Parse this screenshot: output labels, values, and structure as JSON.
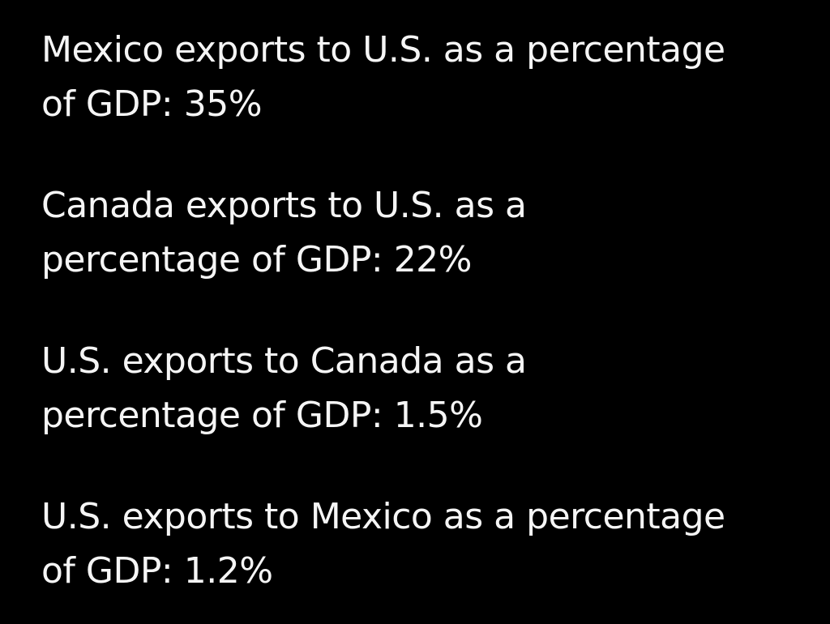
{
  "post": {
    "paragraphs": [
      "Mexico exports to U.S. as a percentage\nof GDP: 35%",
      "Canada exports to U.S. as a\npercentage of GDP: 22%",
      "U.S. exports to Canada as a\npercentage of GDP: 1.5%",
      "U.S. exports to Mexico as a percentage\nof GDP: 1.2%"
    ]
  },
  "colors": {
    "background": "#000000",
    "text": "#f5f5f5"
  }
}
